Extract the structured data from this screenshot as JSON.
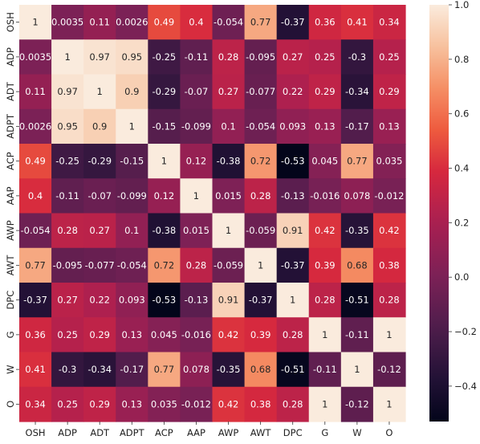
{
  "chart_data": {
    "type": "heatmap",
    "title": "",
    "xlabel": "",
    "ylabel": "",
    "x_categories": [
      "OSH",
      "ADP",
      "ADT",
      "ADPT",
      "ACP",
      "AAP",
      "AWP",
      "AWT",
      "DPC",
      "G",
      "W",
      "O"
    ],
    "y_categories": [
      "OSH",
      "ADP",
      "ADT",
      "ADPT",
      "ACP",
      "AAP",
      "AWP",
      "AWT",
      "DPC",
      "G",
      "W",
      "O"
    ],
    "values": [
      [
        1,
        0.0035,
        0.11,
        0.0026,
        0.49,
        0.4,
        -0.054,
        0.77,
        -0.37,
        0.36,
        0.41,
        0.34
      ],
      [
        0.0035,
        1,
        0.97,
        0.95,
        -0.25,
        -0.11,
        0.28,
        -0.095,
        0.27,
        0.25,
        -0.3,
        0.25
      ],
      [
        0.11,
        0.97,
        1,
        0.9,
        -0.29,
        -0.07,
        0.27,
        -0.077,
        0.22,
        0.29,
        -0.34,
        0.29
      ],
      [
        0.0026,
        0.95,
        0.9,
        1,
        -0.15,
        -0.099,
        0.1,
        -0.054,
        0.093,
        0.13,
        -0.17,
        0.13
      ],
      [
        0.49,
        -0.25,
        -0.29,
        -0.15,
        1,
        0.12,
        -0.38,
        0.72,
        -0.53,
        0.045,
        0.77,
        0.035
      ],
      [
        0.4,
        -0.11,
        -0.07,
        -0.099,
        0.12,
        1,
        0.015,
        0.28,
        -0.13,
        -0.016,
        0.078,
        -0.012
      ],
      [
        -0.054,
        0.28,
        0.27,
        0.1,
        -0.38,
        0.015,
        1,
        -0.059,
        0.91,
        0.42,
        -0.35,
        0.42
      ],
      [
        0.77,
        -0.095,
        -0.077,
        -0.054,
        0.72,
        0.28,
        -0.059,
        1,
        -0.37,
        0.39,
        0.68,
        0.38
      ],
      [
        -0.37,
        0.27,
        0.22,
        0.093,
        -0.53,
        -0.13,
        0.91,
        -0.37,
        1,
        0.28,
        -0.51,
        0.28
      ],
      [
        0.36,
        0.25,
        0.29,
        0.13,
        0.045,
        -0.016,
        0.42,
        0.39,
        0.28,
        1,
        -0.11,
        1
      ],
      [
        0.41,
        -0.3,
        -0.34,
        -0.17,
        0.77,
        0.078,
        -0.35,
        0.68,
        -0.51,
        -0.11,
        1,
        -0.12
      ],
      [
        0.34,
        0.25,
        0.29,
        0.13,
        0.035,
        -0.012,
        0.42,
        0.38,
        0.28,
        1,
        -0.12,
        1
      ]
    ],
    "cell_labels": [
      [
        "1",
        "0.0035",
        "0.11",
        "0.0026",
        "0.49",
        "0.4",
        "-0.054",
        "0.77",
        "-0.37",
        "0.36",
        "0.41",
        "0.34"
      ],
      [
        "0.0035",
        "1",
        "0.97",
        "0.95",
        "-0.25",
        "-0.11",
        "0.28",
        "-0.095",
        "0.27",
        "0.25",
        "-0.3",
        "0.25"
      ],
      [
        "0.11",
        "0.97",
        "1",
        "0.9",
        "-0.29",
        "-0.07",
        "0.27",
        "-0.077",
        "0.22",
        "0.29",
        "-0.34",
        "0.29"
      ],
      [
        "0.0026",
        "0.95",
        "0.9",
        "1",
        "-0.15",
        "-0.099",
        "0.1",
        "-0.054",
        "0.093",
        "0.13",
        "-0.17",
        "0.13"
      ],
      [
        "0.49",
        "-0.25",
        "-0.29",
        "-0.15",
        "1",
        "0.12",
        "-0.38",
        "0.72",
        "-0.53",
        "0.045",
        "0.77",
        "0.035"
      ],
      [
        "0.4",
        "-0.11",
        "-0.07",
        "-0.099",
        "0.12",
        "1",
        "0.015",
        "0.28",
        "-0.13",
        "-0.016",
        "0.078",
        "-0.012"
      ],
      [
        "-0.054",
        "0.28",
        "0.27",
        "0.1",
        "-0.38",
        "0.015",
        "1",
        "-0.059",
        "0.91",
        "0.42",
        "-0.35",
        "0.42"
      ],
      [
        "0.77",
        "-0.095",
        "-0.077",
        "-0.054",
        "0.72",
        "0.28",
        "-0.059",
        "1",
        "-0.37",
        "0.39",
        "0.68",
        "0.38"
      ],
      [
        "-0.37",
        "0.27",
        "0.22",
        "0.093",
        "-0.53",
        "-0.13",
        "0.91",
        "-0.37",
        "1",
        "0.28",
        "-0.51",
        "0.28"
      ],
      [
        "0.36",
        "0.25",
        "0.29",
        "0.13",
        "0.045",
        "-0.016",
        "0.42",
        "0.39",
        "0.28",
        "1",
        "-0.11",
        "1"
      ],
      [
        "0.41",
        "-0.3",
        "-0.34",
        "-0.17",
        "0.77",
        "0.078",
        "-0.35",
        "0.68",
        "-0.51",
        "-0.11",
        "1",
        "-0.12"
      ],
      [
        "0.34",
        "0.25",
        "0.29",
        "0.13",
        "0.035",
        "-0.012",
        "0.42",
        "0.38",
        "0.28",
        "1",
        "-0.12",
        "1"
      ]
    ],
    "colorbar": {
      "vmin": -0.53,
      "vmax": 1.0,
      "ticks": [
        -0.4,
        -0.2,
        0.0,
        0.2,
        0.4,
        0.6,
        0.8,
        1.0
      ],
      "tick_labels": [
        "−0.4",
        "−0.2",
        "0.0",
        "0.2",
        "0.4",
        "0.6",
        "0.8",
        "1.0"
      ],
      "colormap": "rocket"
    },
    "grid": false
  }
}
